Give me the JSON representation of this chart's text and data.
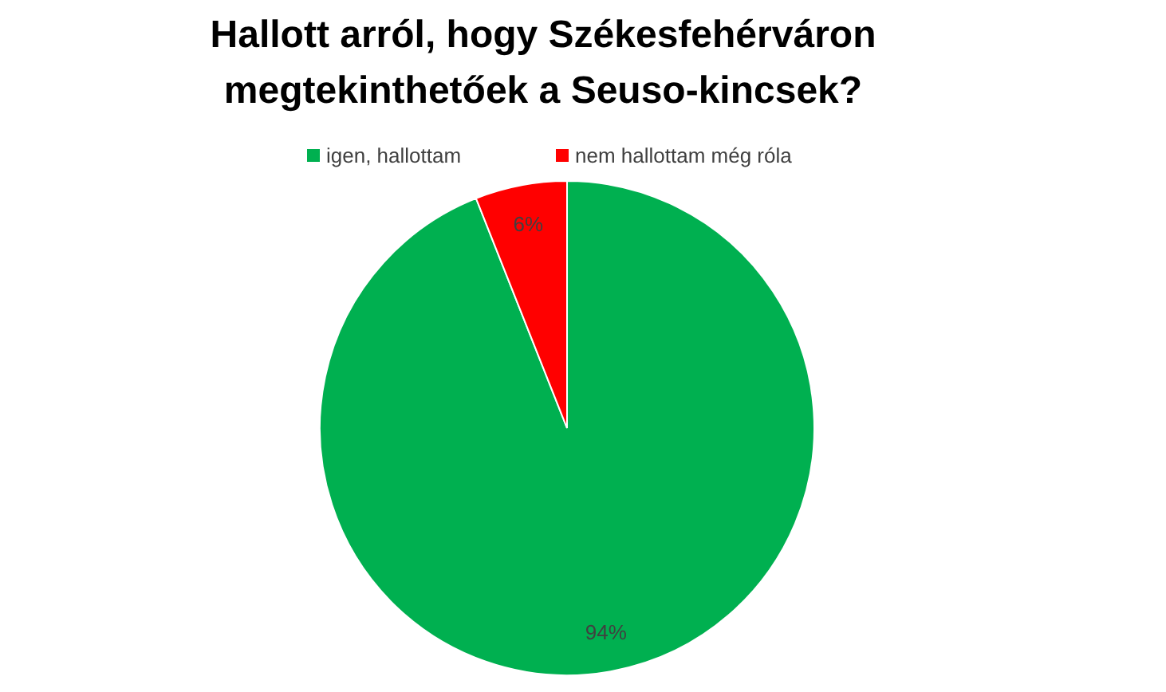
{
  "chart_data": {
    "type": "pie",
    "title": "Hallott arról, hogy Székesfehérváron\nmegtekinthetőek a Seuso-kincsek?",
    "categories": [
      "igen, hallottam",
      "nem hallottam még róla"
    ],
    "values": [
      94,
      6
    ],
    "colors": [
      "#00b050",
      "#ff0000"
    ],
    "value_labels": [
      "94%",
      "6%"
    ],
    "legend": "top"
  }
}
